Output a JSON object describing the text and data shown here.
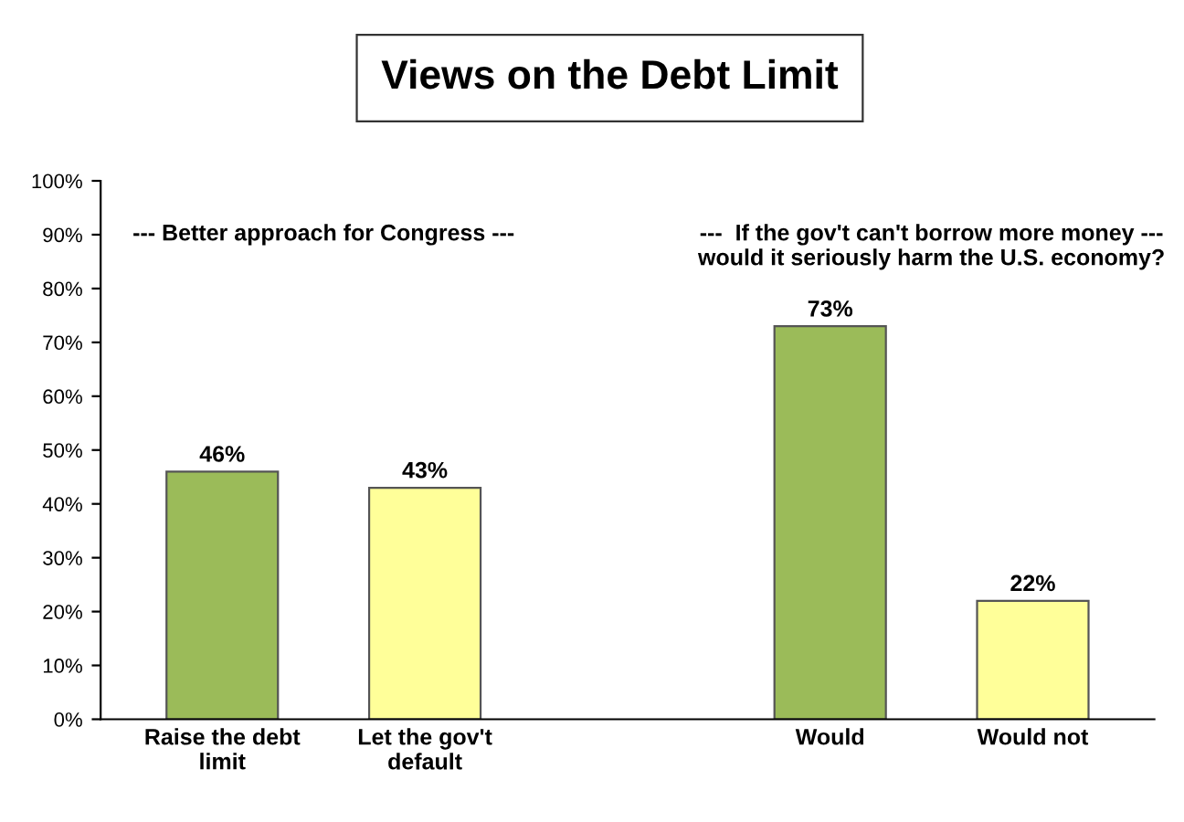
{
  "chart_data": {
    "type": "bar",
    "title": "Views on the Debt Limit",
    "categories": [
      "Raise the debt limit",
      "Let the gov't default",
      null,
      "Would",
      "Would not"
    ],
    "values": [
      46,
      43,
      null,
      73,
      22
    ],
    "colors": [
      "#9bbb59",
      "#ffff99",
      "#ffffff",
      "#9bbb59",
      "#ffff99"
    ],
    "value_labels": [
      "46%",
      "43%",
      null,
      "73%",
      "22%"
    ],
    "ylim": [
      0,
      100
    ],
    "yticks": [
      {
        "value": 0,
        "label": "0%"
      },
      {
        "value": 10,
        "label": "10%"
      },
      {
        "value": 20,
        "label": "20%"
      },
      {
        "value": 30,
        "label": "30%"
      },
      {
        "value": 40,
        "label": "40%"
      },
      {
        "value": 50,
        "label": "50%"
      },
      {
        "value": 60,
        "label": "60%"
      },
      {
        "value": 70,
        "label": "70%"
      },
      {
        "value": 80,
        "label": "80%"
      },
      {
        "value": 90,
        "label": "90%"
      },
      {
        "value": 100,
        "label": "100%"
      }
    ],
    "annotations": [
      "--- Better approach for Congress ---",
      "---  If the gov't can't borrow more money ---\nwould it seriously harm the U.S. economy?"
    ],
    "grid": false,
    "legend": false
  }
}
